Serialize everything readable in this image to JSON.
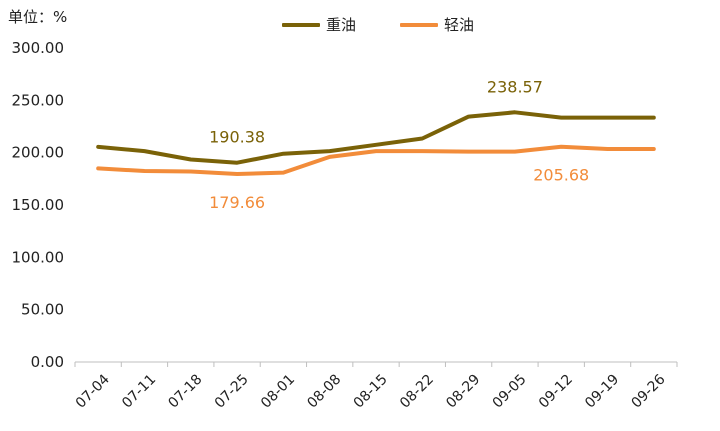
{
  "unit_label": "单位：%",
  "chart_data": {
    "type": "line",
    "categories": [
      "07-04",
      "07-11",
      "07-18",
      "07-25",
      "08-01",
      "08-08",
      "08-15",
      "08-22",
      "08-29",
      "09-05",
      "09-12",
      "09-19",
      "09-26"
    ],
    "y_ticks": [
      "0.00",
      "50.00",
      "100.00",
      "150.00",
      "200.00",
      "250.00",
      "300.00"
    ],
    "ylim": [
      0,
      300
    ],
    "legend_position": "top-center",
    "series": [
      {
        "name": "重油",
        "color": "#7a6208",
        "values": [
          205.5,
          201.5,
          193.5,
          190.38,
          199,
          201.5,
          207.5,
          213.5,
          234.5,
          238.57,
          233.5,
          233.5,
          233.5
        ]
      },
      {
        "name": "轻油",
        "color": "#f28c3a",
        "values": [
          185,
          182.5,
          182,
          179.66,
          181,
          196,
          201.5,
          201.5,
          201,
          201,
          205.68,
          203.5,
          203.5
        ]
      }
    ],
    "annotations": [
      {
        "series": 0,
        "index": 3,
        "text": "190.38",
        "color": "#7a6208",
        "position": "above"
      },
      {
        "series": 1,
        "index": 3,
        "text": "179.66",
        "color": "#f28c3a",
        "position": "below"
      },
      {
        "series": 0,
        "index": 9,
        "text": "238.57",
        "color": "#7a6208",
        "position": "above"
      },
      {
        "series": 1,
        "index": 10,
        "text": "205.68",
        "color": "#f28c3a",
        "position": "below"
      }
    ]
  }
}
